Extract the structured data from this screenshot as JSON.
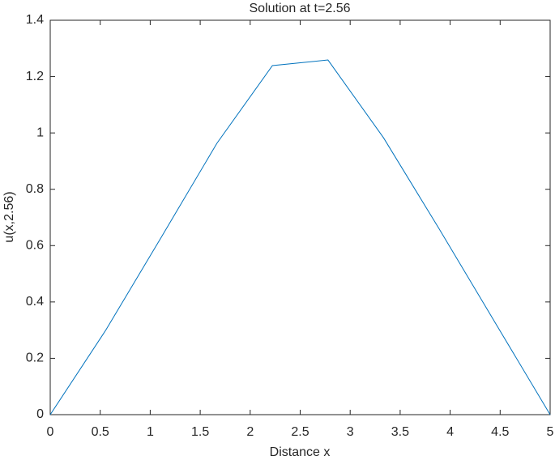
{
  "chart_data": {
    "type": "line",
    "title": "Solution at t=2.56",
    "x_label": "Distance x",
    "y_label": "u(x,2.56)",
    "x": [
      0,
      0.5556,
      1.1111,
      1.6667,
      2.2222,
      2.7778,
      3.3333,
      3.8889,
      4.4444,
      5
    ],
    "values": [
      0,
      0.3,
      0.63,
      0.963,
      1.239,
      1.259,
      0.983,
      0.66,
      0.33,
      0
    ],
    "color": "#0072bd",
    "xlim": [
      0,
      5
    ],
    "xticks": [
      0,
      0.5,
      1,
      1.5,
      2,
      2.5,
      3,
      3.5,
      4,
      4.5,
      5
    ],
    "ylim": [
      0,
      1.4
    ],
    "yticks": [
      0,
      0.2,
      0.4,
      0.6,
      0.8,
      1,
      1.2,
      1.4
    ]
  }
}
